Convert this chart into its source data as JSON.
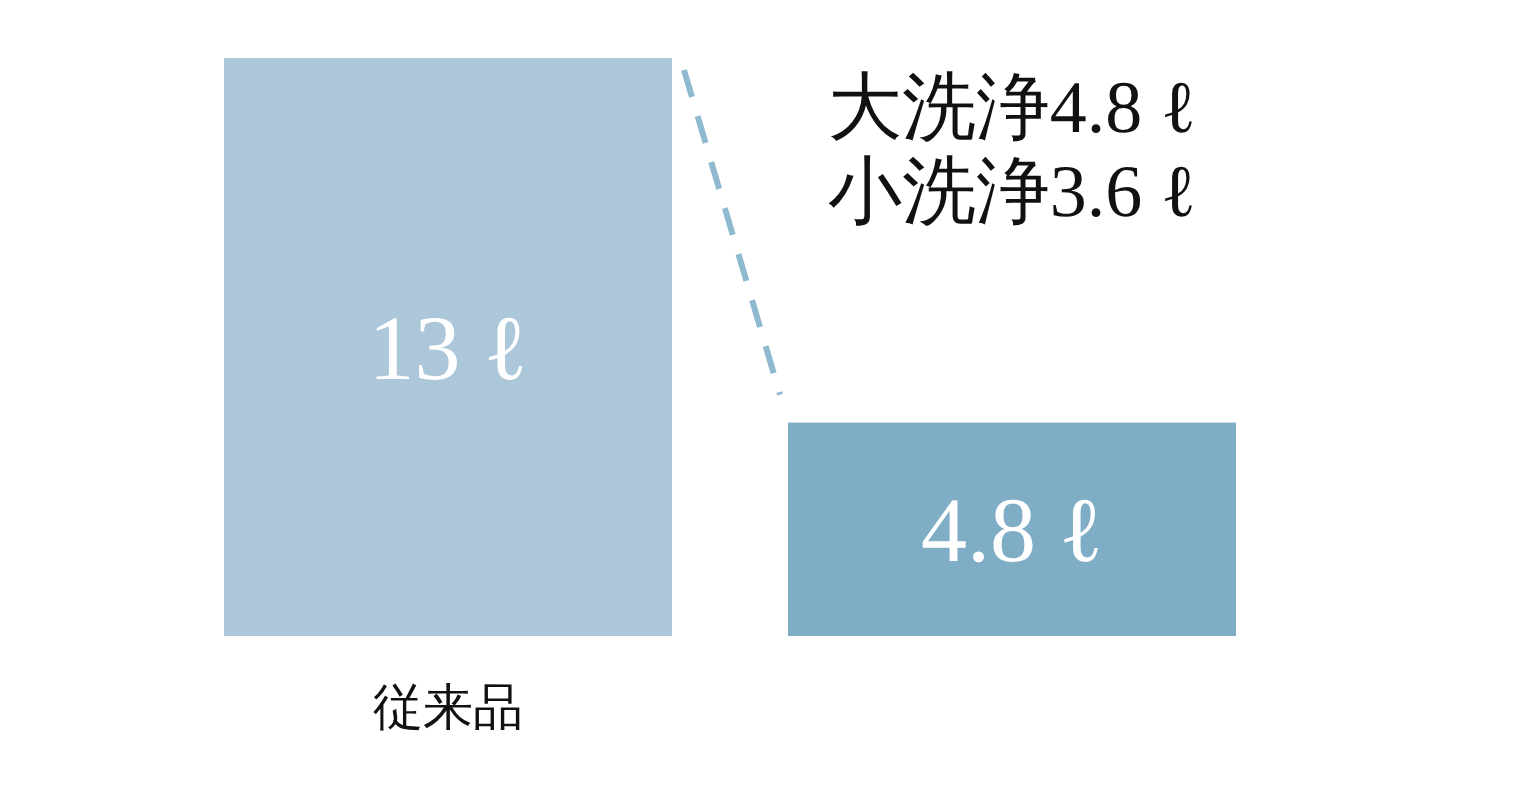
{
  "chart_data": {
    "type": "bar",
    "categories": [
      "従来品",
      null
    ],
    "values": [
      13,
      4.8
    ],
    "colors": [
      "#abc7d9",
      "#7fadc6"
    ],
    "value_labels": [
      "13 ℓ",
      "4.8 ℓ"
    ],
    "annotations": [
      "大洗浄4.8 ℓ",
      "小洗浄3.6 ℓ"
    ]
  }
}
